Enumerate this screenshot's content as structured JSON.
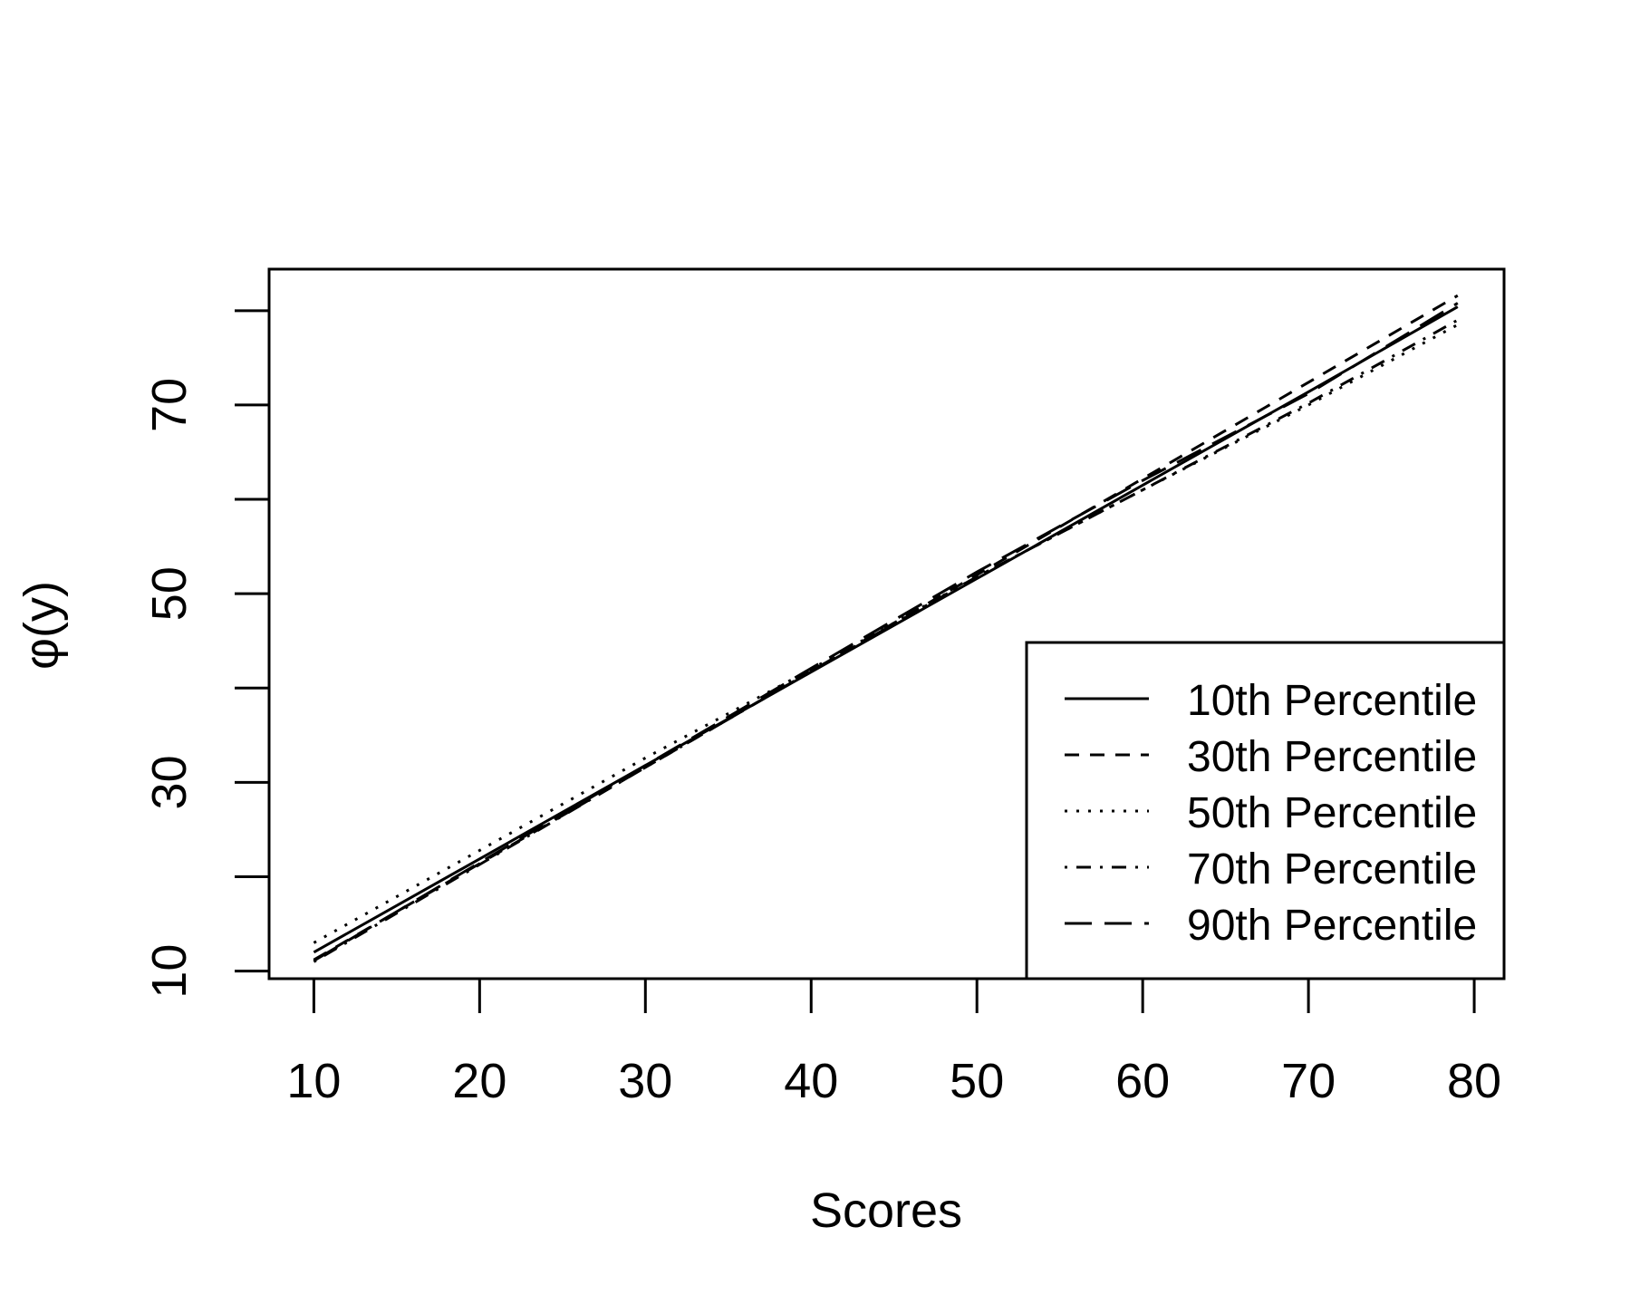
{
  "chart_data": {
    "type": "line",
    "title": "",
    "xlabel": "Scores",
    "ylabel": "φ(y)",
    "xlim": [
      7.3,
      81.8
    ],
    "ylim": [
      9.2,
      84.4
    ],
    "x_ticks": [
      10,
      20,
      30,
      40,
      50,
      60,
      70,
      80
    ],
    "y_ticks": [
      10,
      20,
      30,
      40,
      50,
      60,
      70,
      80
    ],
    "y_tick_labels": [
      "10",
      "",
      "30",
      "",
      "50",
      "",
      "70",
      ""
    ],
    "grid": false,
    "legend_position": "bottom-right",
    "line_color": "#000000",
    "series": [
      {
        "name": "10th Percentile",
        "dash": "solid",
        "points": [
          [
            10,
            12.0
          ],
          [
            20,
            21.9
          ],
          [
            30,
            31.8
          ],
          [
            40,
            41.7
          ],
          [
            50,
            51.6
          ],
          [
            60,
            61.5
          ],
          [
            70,
            71.4
          ],
          [
            79,
            80.4
          ]
        ]
      },
      {
        "name": "30th Percentile",
        "dash": "dashed",
        "points": [
          [
            10,
            11.2
          ],
          [
            20,
            21.4
          ],
          [
            30,
            31.6
          ],
          [
            40,
            41.8
          ],
          [
            50,
            52.0
          ],
          [
            60,
            62.2
          ],
          [
            70,
            72.4
          ],
          [
            79,
            81.6
          ]
        ]
      },
      {
        "name": "50th Percentile",
        "dash": "dotted",
        "points": [
          [
            10,
            13.0
          ],
          [
            20,
            22.8
          ],
          [
            30,
            32.6
          ],
          [
            40,
            42.0
          ],
          [
            50,
            51.8
          ],
          [
            60,
            61.0
          ],
          [
            70,
            70.0
          ],
          [
            79,
            78.5
          ]
        ]
      },
      {
        "name": "70th Percentile",
        "dash": "dotdash",
        "points": [
          [
            10,
            11.0
          ],
          [
            20,
            21.3
          ],
          [
            30,
            31.6
          ],
          [
            40,
            41.8
          ],
          [
            50,
            51.8
          ],
          [
            60,
            61.0
          ],
          [
            70,
            70.2
          ],
          [
            79,
            79.0
          ]
        ]
      },
      {
        "name": "90th Percentile",
        "dash": "longdash",
        "points": [
          [
            10,
            11.1
          ],
          [
            20,
            21.5
          ],
          [
            30,
            31.8
          ],
          [
            40,
            42.1
          ],
          [
            50,
            52.3
          ],
          [
            60,
            62.0
          ],
          [
            70,
            71.2
          ],
          [
            79,
            80.8
          ]
        ]
      }
    ]
  }
}
